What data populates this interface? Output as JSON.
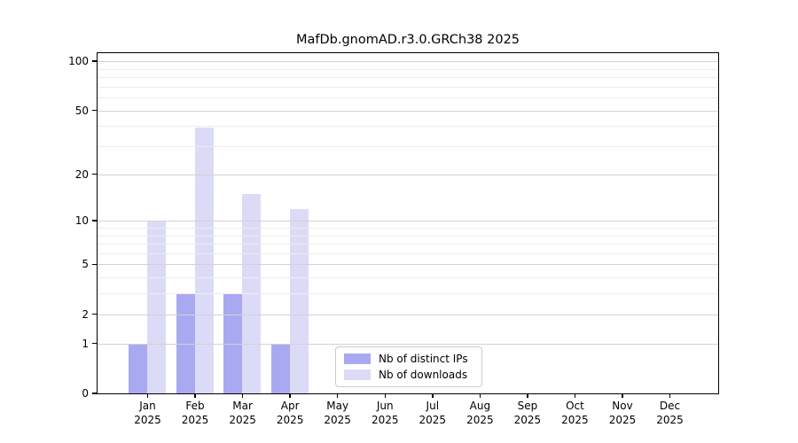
{
  "title": "MafDb.gnomAD.r3.0.GRCh38 2025",
  "chart_data": {
    "type": "bar",
    "title": "MafDb.gnomAD.r3.0.GRCh38 2025",
    "x_tick_months": [
      "Jan",
      "Feb",
      "Mar",
      "Apr",
      "May",
      "Jun",
      "Jul",
      "Aug",
      "Sep",
      "Oct",
      "Nov",
      "Dec"
    ],
    "x_tick_year": "2025",
    "categories": [
      "Jan 2025",
      "Feb 2025",
      "Mar 2025",
      "Apr 2025",
      "May 2025",
      "Jun 2025",
      "Jul 2025",
      "Aug 2025",
      "Sep 2025",
      "Oct 2025",
      "Nov 2025",
      "Dec 2025"
    ],
    "series": [
      {
        "name": "Nb of distinct IPs",
        "color": "#a9a9f2",
        "values": [
          1,
          3,
          3,
          1,
          null,
          null,
          null,
          null,
          null,
          null,
          null,
          null
        ]
      },
      {
        "name": "Nb of downloads",
        "color": "#dbdbf8",
        "values": [
          10,
          39,
          15,
          12,
          null,
          null,
          null,
          null,
          null,
          null,
          null,
          null
        ]
      }
    ],
    "yscale": "log1p",
    "ylim": [
      0,
      112
    ],
    "yticks": [
      0,
      1,
      2,
      5,
      10,
      20,
      50,
      100
    ],
    "minor_gridlines": [
      3,
      4,
      6,
      7,
      8,
      9,
      30,
      40,
      60,
      70,
      80,
      90
    ],
    "grid": true,
    "legend_position": "lower center",
    "xlabel": "",
    "ylabel": ""
  }
}
